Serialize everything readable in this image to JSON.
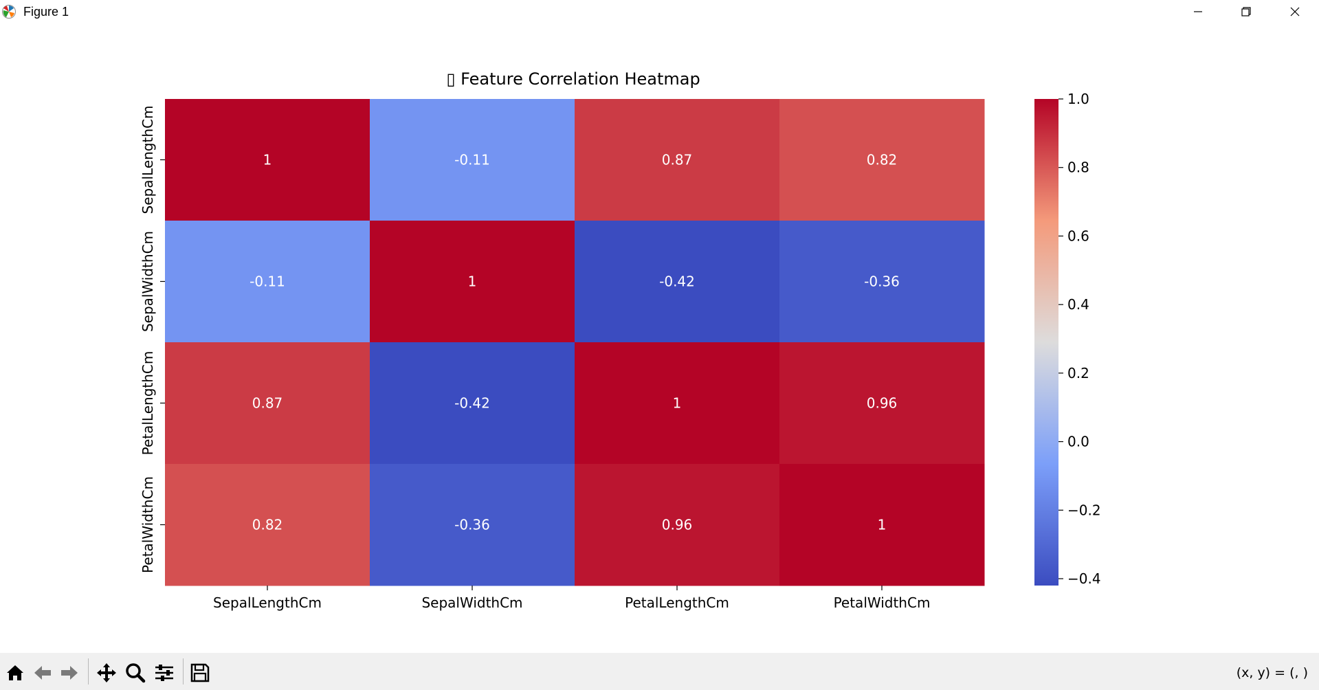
{
  "window": {
    "title": "Figure 1",
    "icon": "matplotlib-logo-icon",
    "controls": [
      "minimize-icon",
      "maximize-icon",
      "close-icon"
    ]
  },
  "toolbar": {
    "tools": [
      "home-icon",
      "back-arrow-icon",
      "forward-arrow-icon",
      "pan-move-icon",
      "zoom-magnifier-icon",
      "configure-subplots-icon",
      "save-floppy-icon"
    ],
    "coords_text": "(x, y) = (, )"
  },
  "chart_data": {
    "type": "heatmap",
    "title": "▯ Feature Correlation Heatmap",
    "xlabel": "",
    "ylabel": "",
    "x_categories": [
      "SepalLengthCm",
      "SepalWidthCm",
      "PetalLengthCm",
      "PetalWidthCm"
    ],
    "y_categories": [
      "SepalLengthCm",
      "SepalWidthCm",
      "PetalLengthCm",
      "PetalWidthCm"
    ],
    "values": [
      [
        1,
        -0.11,
        0.87,
        0.82
      ],
      [
        -0.11,
        1,
        -0.42,
        -0.36
      ],
      [
        0.87,
        -0.42,
        1,
        0.96
      ],
      [
        0.82,
        -0.36,
        0.96,
        1
      ]
    ],
    "annotations": [
      [
        "1",
        "-0.11",
        "0.87",
        "0.82"
      ],
      [
        "-0.11",
        "1",
        "-0.42",
        "-0.36"
      ],
      [
        "0.87",
        "-0.42",
        "1",
        "0.96"
      ],
      [
        "0.82",
        "-0.36",
        "0.96",
        "1"
      ]
    ],
    "colormap": "coolwarm",
    "colorbar": {
      "range": [
        -0.42,
        1.0
      ],
      "ticks": [
        1.0,
        0.8,
        0.6,
        0.4,
        0.2,
        0.0,
        -0.2,
        -0.4
      ],
      "tick_labels": [
        "1.0",
        "0.8",
        "0.6",
        "0.4",
        "0.2",
        "0.0",
        "−0.2",
        "−0.4"
      ]
    }
  }
}
